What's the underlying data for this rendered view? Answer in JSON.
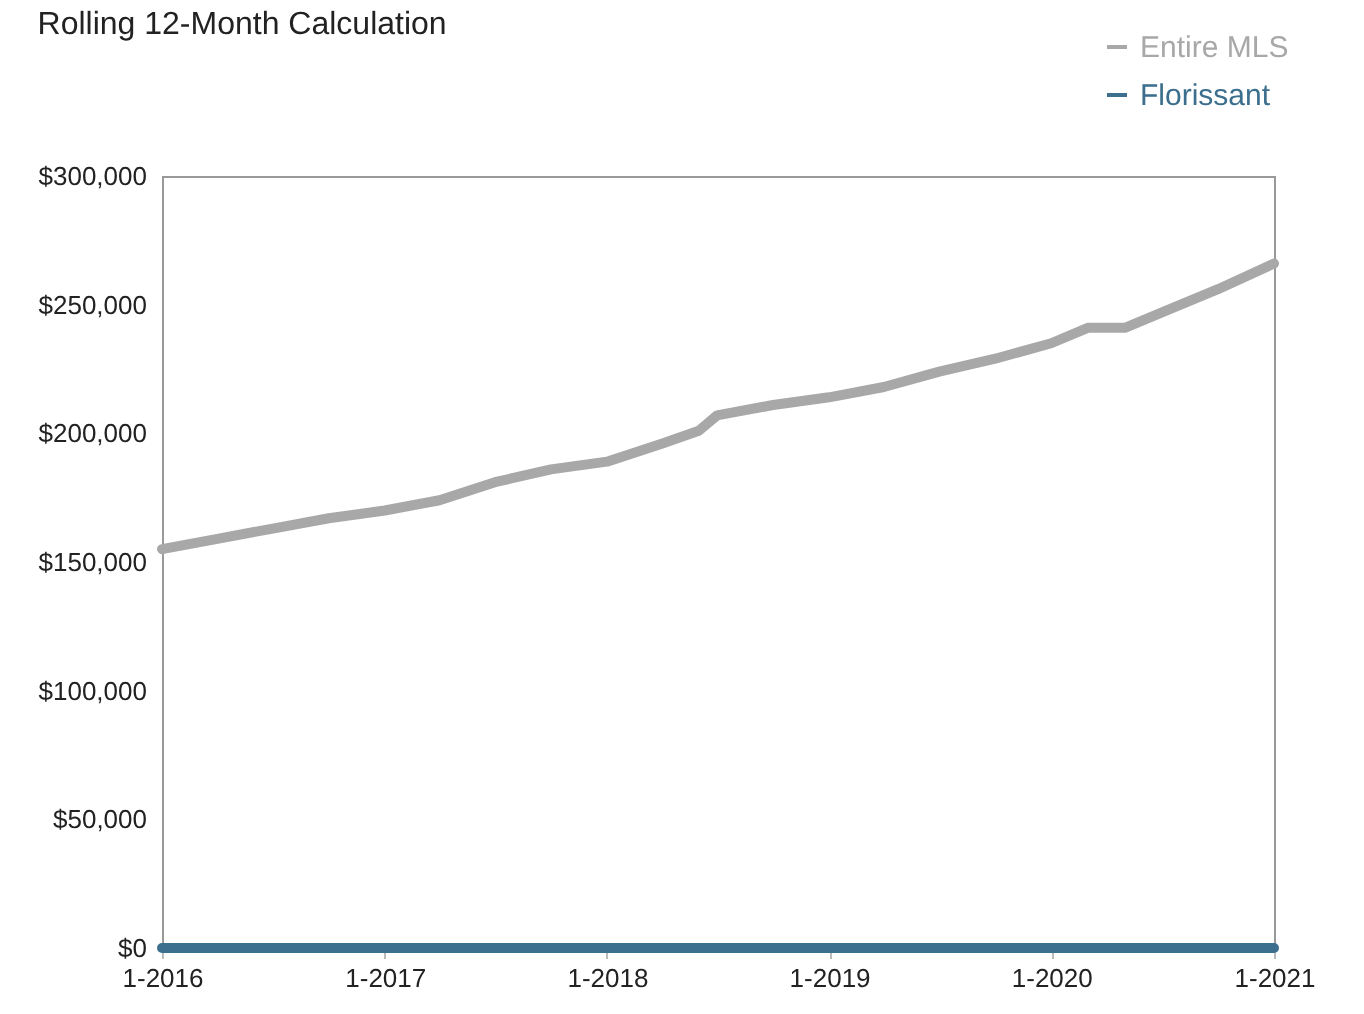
{
  "chart_data": {
    "type": "line",
    "title": "Rolling 12-Month Calculation",
    "x": [
      "2016-01",
      "2016-04",
      "2016-07",
      "2016-10",
      "2017-01",
      "2017-04",
      "2017-07",
      "2017-10",
      "2018-01",
      "2018-04",
      "2018-06",
      "2018-07",
      "2018-10",
      "2019-01",
      "2019-04",
      "2019-07",
      "2019-10",
      "2020-01",
      "2020-03",
      "2020-05",
      "2020-07",
      "2020-10",
      "2021-01"
    ],
    "series": [
      {
        "name": "Entire MLS",
        "color": "#a8a8a8",
        "values": [
          155000,
          159000,
          163000,
          167000,
          170000,
          174000,
          181000,
          186000,
          189000,
          196000,
          201000,
          207000,
          211000,
          214000,
          218000,
          224000,
          229000,
          235000,
          241000,
          241000,
          247000,
          256000,
          266000
        ]
      },
      {
        "name": "Florissant",
        "color": "#3c6e8e",
        "values": [
          0,
          0,
          0,
          0,
          0,
          0,
          0,
          0,
          0,
          0,
          0,
          0,
          0,
          0,
          0,
          0,
          0,
          0,
          0,
          0,
          0,
          0,
          0
        ]
      }
    ],
    "xlim": [
      "2016-01",
      "2021-01"
    ],
    "xticks": [
      {
        "value": "2016-01",
        "label": "1-2016"
      },
      {
        "value": "2017-01",
        "label": "1-2017"
      },
      {
        "value": "2018-01",
        "label": "1-2018"
      },
      {
        "value": "2019-01",
        "label": "1-2019"
      },
      {
        "value": "2020-01",
        "label": "1-2020"
      },
      {
        "value": "2021-01",
        "label": "1-2021"
      }
    ],
    "ylim": [
      0,
      300000
    ],
    "yticks": [
      {
        "value": 0,
        "label": "$0"
      },
      {
        "value": 50000,
        "label": "$50,000"
      },
      {
        "value": 100000,
        "label": "$100,000"
      },
      {
        "value": 150000,
        "label": "$150,000"
      },
      {
        "value": 200000,
        "label": "$200,000"
      },
      {
        "value": 250000,
        "label": "$250,000"
      },
      {
        "value": 300000,
        "label": "$300,000"
      }
    ],
    "grid": false,
    "legend": "top right",
    "line_style": "solid"
  }
}
